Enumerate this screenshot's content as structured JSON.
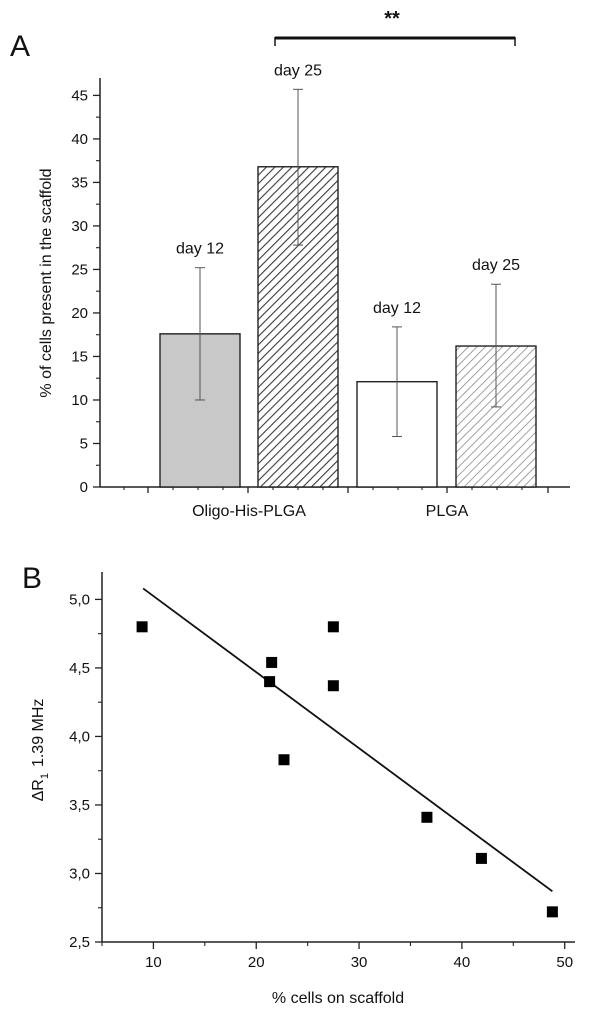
{
  "chart_data": [
    {
      "panel": "A",
      "type": "bar",
      "ylabel": "% of cells present in the scaffold",
      "xlabel": "",
      "ylim": [
        0,
        47
      ],
      "yticks": [
        "0",
        "5",
        "10",
        "15",
        "20",
        "25",
        "30",
        "35",
        "40",
        "45"
      ],
      "groups": [
        "Oligo-His-PLGA",
        "PLGA"
      ],
      "bars": [
        {
          "group": "Oligo-His-PLGA",
          "label": "day 12",
          "value": 17.6,
          "err_low": 10.0,
          "err_high": 25.2,
          "fill": "#c8c8c8",
          "pattern": "solid"
        },
        {
          "group": "Oligo-His-PLGA",
          "label": "day 25",
          "value": 36.8,
          "err_low": 27.8,
          "err_high": 45.7,
          "fill": "#4a4a4a",
          "pattern": "dense-hatch"
        },
        {
          "group": "PLGA",
          "label": "day 12",
          "value": 12.1,
          "err_low": 5.8,
          "err_high": 18.4,
          "fill": "#ffffff",
          "pattern": "solid"
        },
        {
          "group": "PLGA",
          "label": "day 25",
          "value": 16.2,
          "err_low": 9.2,
          "err_high": 23.3,
          "fill": "#9a9a9a",
          "pattern": "light-hatch"
        }
      ],
      "significance": {
        "label": "**",
        "from_bar": 1,
        "to_bar": 3
      }
    },
    {
      "panel": "B",
      "type": "scatter",
      "xlabel": "% cells on scaffold",
      "ylabel": "ΔR",
      "ylabel_sub": "1",
      "ylabel_suffix": "1.39 MHz",
      "xlim": [
        5,
        51
      ],
      "ylim": [
        2.5,
        5.2
      ],
      "xticks": [
        "10",
        "20",
        "30",
        "40",
        "50"
      ],
      "yticks": [
        "2,5",
        "3,0",
        "3,5",
        "4,0",
        "4,5",
        "5,0"
      ],
      "points": [
        {
          "x": 8.9,
          "y": 4.8
        },
        {
          "x": 21.3,
          "y": 4.4
        },
        {
          "x": 21.5,
          "y": 4.54
        },
        {
          "x": 22.7,
          "y": 3.83
        },
        {
          "x": 27.5,
          "y": 4.8
        },
        {
          "x": 27.5,
          "y": 4.37
        },
        {
          "x": 36.6,
          "y": 3.41
        },
        {
          "x": 41.9,
          "y": 3.11
        },
        {
          "x": 48.8,
          "y": 2.72
        }
      ],
      "fit_line": {
        "x": [
          9.0,
          48.8
        ],
        "y": [
          5.08,
          2.87
        ]
      }
    }
  ],
  "labels": {
    "panel_a": "A",
    "panel_b": "B"
  }
}
